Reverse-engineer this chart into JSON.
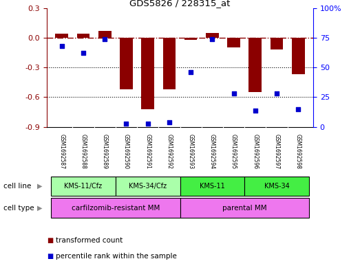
{
  "title": "GDS5826 / 228315_at",
  "samples": [
    "GSM1692587",
    "GSM1692588",
    "GSM1692589",
    "GSM1692590",
    "GSM1692591",
    "GSM1692592",
    "GSM1692593",
    "GSM1692594",
    "GSM1692595",
    "GSM1692596",
    "GSM1692597",
    "GSM1692598"
  ],
  "transformed_count": [
    0.04,
    0.04,
    0.07,
    -0.52,
    -0.72,
    -0.52,
    -0.02,
    0.05,
    -0.1,
    -0.55,
    -0.12,
    -0.37
  ],
  "percentile_rank": [
    68,
    62,
    74,
    3,
    3,
    4,
    46,
    74,
    28,
    14,
    28,
    15
  ],
  "bar_color": "#8B0000",
  "dot_color": "#0000CD",
  "cell_lines": [
    {
      "label": "KMS-11/Cfz",
      "start": 0,
      "end": 3,
      "color": "#aaffaa"
    },
    {
      "label": "KMS-34/Cfz",
      "start": 3,
      "end": 6,
      "color": "#aaffaa"
    },
    {
      "label": "KMS-11",
      "start": 6,
      "end": 9,
      "color": "#44ee44"
    },
    {
      "label": "KMS-34",
      "start": 9,
      "end": 12,
      "color": "#44ee44"
    }
  ],
  "cell_types": [
    {
      "label": "carfilzomib-resistant MM",
      "start": 0,
      "end": 6,
      "color": "#ee77ee"
    },
    {
      "label": "parental MM",
      "start": 6,
      "end": 12,
      "color": "#ee77ee"
    }
  ],
  "cell_line_label": "cell line",
  "cell_type_label": "cell type",
  "ylim": [
    -0.9,
    0.3
  ],
  "yticks": [
    0.3,
    0.0,
    -0.3,
    -0.6,
    -0.9
  ],
  "y2ticks": [
    100,
    75,
    50,
    25,
    0
  ],
  "y2lim": [
    0,
    100
  ],
  "hline_y": 0.0,
  "dotted_lines": [
    -0.3,
    -0.6
  ],
  "bar_width": 0.6,
  "background_color": "#ffffff",
  "plot_bg": "#ffffff",
  "gsm_bg": "#cccccc",
  "arrow_color": "#888888"
}
